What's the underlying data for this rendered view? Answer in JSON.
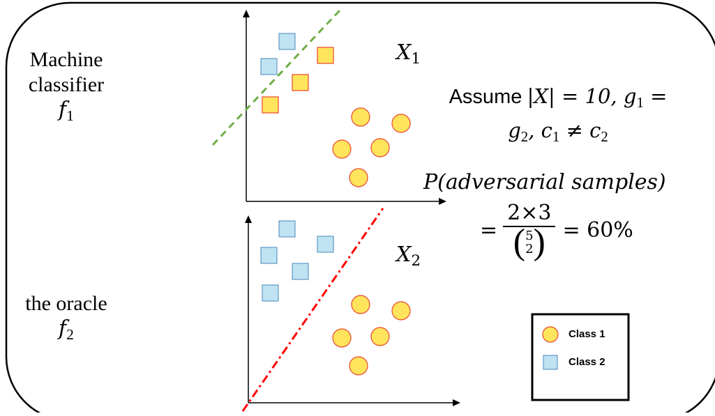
{
  "rows": [
    {
      "title_line1": "Machine",
      "title_line2": "classifier",
      "fn_base": "f",
      "fn_sub": "1",
      "region_base": "X",
      "region_sub": "1"
    },
    {
      "title_line1": "the oracle",
      "fn_base": "f",
      "fn_sub": "2",
      "region_base": "X",
      "region_sub": "2"
    }
  ],
  "assumption": {
    "word": "Assume",
    "line1_math": "|X| = 10, g",
    "line1_sub": "1",
    "line1_tail": " =",
    "line2_g": "g",
    "line2_g_sub": "2",
    "line2_c1": ", c",
    "line2_c1_sub": "1",
    "line2_neq": " ≠ c",
    "line2_c2_sub": "2"
  },
  "probability": {
    "lhs": "P(adversarial samples)",
    "equals": "=",
    "numerator": "2×3",
    "binom_top": "5",
    "binom_bottom": "2",
    "result": "= 60%"
  },
  "legend": [
    {
      "label": "Class 1",
      "shape": "circle",
      "fill": "#ffe45c",
      "stroke": "#e8462b"
    },
    {
      "label": "Class 2",
      "shape": "square",
      "fill": "#bfe3f2",
      "stroke": "#4a86b8"
    }
  ],
  "colors": {
    "boundary_classifier": "#70ad47",
    "boundary_oracle": "#ff0000",
    "class1_fill": "#ffe45c",
    "class1_stroke": "#e8462b",
    "class2_fill": "#bfe3f2",
    "class2_stroke": "#4a86b8",
    "misclassified_fill": "#ffe45c",
    "misclassified_stroke": "#e8462b"
  }
}
